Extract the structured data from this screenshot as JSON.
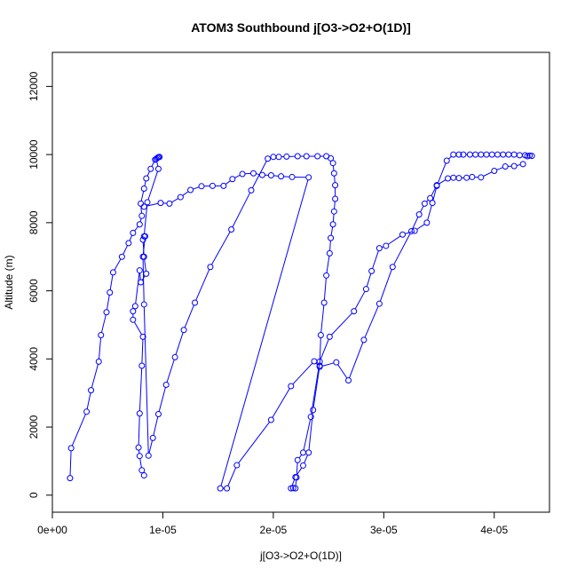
{
  "chart_data": {
    "type": "scatter",
    "title": "ATOM3 Southbound j[O3->O2+O(1D)]",
    "xlabel": "j[O3->O2+O(1D)]",
    "ylabel": "Altitude (m)",
    "xlim": [
      0,
      4.5e-05
    ],
    "ylim": [
      -500,
      13000
    ],
    "x_ticks": [
      0,
      1e-05,
      2e-05,
      3e-05,
      4e-05
    ],
    "x_tick_labels": [
      "0e+00",
      "1e-05",
      "2e-05",
      "3e-05",
      "4e-05"
    ],
    "y_ticks": [
      0,
      2000,
      4000,
      6000,
      8000,
      10000,
      12000
    ],
    "y_tick_labels": [
      "0",
      "2000",
      "4000",
      "6000",
      "8000",
      "10000",
      "12000"
    ],
    "grid": false,
    "color": "#0000ff",
    "marker": "open-circle",
    "series": [
      {
        "points": [
          [
            1.6e-06,
            500
          ],
          [
            1.7e-06,
            1380
          ],
          [
            3.1e-06,
            2450
          ],
          [
            3.5e-06,
            3080
          ],
          [
            4.2e-06,
            3920
          ],
          [
            4.4e-06,
            4700
          ],
          [
            4.9e-06,
            5370
          ],
          [
            5.2e-06,
            5950
          ],
          [
            5.5e-06,
            6540
          ],
          [
            6.3e-06,
            7000
          ],
          [
            6.9e-06,
            7400
          ],
          [
            7.3e-06,
            7700
          ],
          [
            7.9e-06,
            7950
          ],
          [
            8.1e-06,
            8200
          ],
          [
            8e-06,
            8560
          ],
          [
            8.3e-06,
            9000
          ],
          [
            8.5e-06,
            9300
          ],
          [
            8.9e-06,
            9580
          ],
          [
            9.3e-06,
            9850
          ],
          [
            9.5e-06,
            9900
          ],
          [
            9.6e-06,
            9920
          ],
          [
            9.7e-06,
            9930
          ],
          [
            9.6e-06,
            9920
          ],
          [
            9.4e-06,
            9870
          ],
          [
            9.6e-06,
            9580
          ],
          [
            8.6e-06,
            8600
          ],
          [
            8.3e-06,
            7600
          ],
          [
            8.2e-06,
            7500
          ],
          [
            8.3e-06,
            7000
          ],
          [
            8.5e-06,
            6500
          ],
          [
            8e-06,
            6250
          ],
          [
            7.9e-06,
            6600
          ],
          [
            7.5e-06,
            5550
          ],
          [
            7.3e-06,
            5400
          ],
          [
            7.3e-06,
            5150
          ],
          [
            8.2e-06,
            4650
          ],
          [
            8.1e-06,
            3800
          ],
          [
            7.9e-06,
            2400
          ],
          [
            7.8e-06,
            1400
          ],
          [
            7.9e-06,
            1150
          ],
          [
            8.1e-06,
            730
          ],
          [
            8.3e-06,
            580
          ]
        ]
      },
      {
        "points": [
          [
            8.4e-06,
            7600
          ],
          [
            8.2e-06,
            7000
          ],
          [
            8.3e-06,
            5600
          ],
          [
            8.7e-06,
            1160
          ],
          [
            9.1e-06,
            1680
          ],
          [
            9.6e-06,
            2380
          ],
          [
            1.03e-05,
            3240
          ],
          [
            1.11e-05,
            4050
          ],
          [
            1.19e-05,
            4850
          ],
          [
            1.29e-05,
            5650
          ],
          [
            1.43e-05,
            6700
          ],
          [
            1.62e-05,
            7800
          ],
          [
            1.8e-05,
            8950
          ],
          [
            1.95e-05,
            9880
          ],
          [
            2e-05,
            9930
          ],
          [
            2.05e-05,
            9930
          ],
          [
            2.12e-05,
            9940
          ],
          [
            2.22e-05,
            9950
          ],
          [
            2.3e-05,
            9950
          ],
          [
            2.4e-05,
            9950
          ],
          [
            2.48e-05,
            9950
          ],
          [
            2.52e-05,
            9890
          ],
          [
            2.54e-05,
            9750
          ],
          [
            2.55e-05,
            9450
          ],
          [
            2.56e-05,
            9100
          ],
          [
            2.56e-05,
            8700
          ],
          [
            2.55e-05,
            8330
          ],
          [
            2.54e-05,
            7950
          ],
          [
            2.52e-05,
            7550
          ],
          [
            2.51e-05,
            7100
          ],
          [
            2.48e-05,
            6450
          ],
          [
            2.46e-05,
            5650
          ],
          [
            2.43e-05,
            4700
          ],
          [
            2.42e-05,
            3800
          ],
          [
            2.36e-05,
            2500
          ],
          [
            2.32e-05,
            1250
          ],
          [
            2.27e-05,
            870
          ],
          [
            2.2e-05,
            530
          ],
          [
            2.16e-05,
            200
          ],
          [
            2.18e-05,
            210
          ],
          [
            2.2e-05,
            200
          ],
          [
            2.21e-05,
            520
          ],
          [
            2.22e-05,
            1030
          ],
          [
            2.27e-05,
            1250
          ],
          [
            2.34e-05,
            2300
          ],
          [
            2.42e-05,
            3920
          ],
          [
            2.51e-05,
            4650
          ],
          [
            2.73e-05,
            5400
          ],
          [
            2.84e-05,
            6050
          ],
          [
            2.89e-05,
            6580
          ],
          [
            2.96e-05,
            7250
          ],
          [
            3.02e-05,
            7320
          ],
          [
            3.17e-05,
            7650
          ],
          [
            3.28e-05,
            7760
          ],
          [
            3.39e-05,
            8000
          ],
          [
            3.44e-05,
            8580
          ],
          [
            3.48e-05,
            9080
          ],
          [
            3.57e-05,
            9820
          ],
          [
            3.63e-05,
            10000
          ],
          [
            3.68e-05,
            10000
          ],
          [
            3.72e-05,
            10000
          ],
          [
            3.78e-05,
            10000
          ],
          [
            3.83e-05,
            10000
          ],
          [
            3.88e-05,
            10000
          ],
          [
            3.93e-05,
            10000
          ],
          [
            3.98e-05,
            10000
          ],
          [
            4.03e-05,
            10000
          ],
          [
            4.08e-05,
            10000
          ],
          [
            4.13e-05,
            10000
          ],
          [
            4.18e-05,
            10000
          ],
          [
            4.23e-05,
            9980
          ],
          [
            4.28e-05,
            9980
          ],
          [
            4.32e-05,
            9970
          ],
          [
            4.34e-05,
            9960
          ],
          [
            4.3e-05,
            9950
          ]
        ]
      },
      {
        "points": [
          [
            8.3e-06,
            8470
          ],
          [
            9.8e-06,
            8580
          ],
          [
            1.06e-05,
            8560
          ],
          [
            1.16e-05,
            8750
          ],
          [
            1.25e-05,
            8960
          ],
          [
            1.35e-05,
            9070
          ],
          [
            1.45e-05,
            9080
          ],
          [
            1.55e-05,
            9080
          ],
          [
            1.63e-05,
            9280
          ],
          [
            1.72e-05,
            9430
          ],
          [
            1.82e-05,
            9450
          ],
          [
            1.9e-05,
            9400
          ],
          [
            1.98e-05,
            9390
          ],
          [
            2.07e-05,
            9360
          ],
          [
            2.17e-05,
            9340
          ],
          [
            2.32e-05,
            9330
          ],
          [
            1.52e-05,
            200
          ],
          [
            1.58e-05,
            200
          ],
          [
            1.67e-05,
            880
          ],
          [
            1.98e-05,
            2210
          ],
          [
            2.16e-05,
            3200
          ],
          [
            2.37e-05,
            3930
          ],
          [
            2.42e-05,
            3770
          ],
          [
            2.57e-05,
            3900
          ],
          [
            2.68e-05,
            3370
          ],
          [
            2.82e-05,
            4560
          ],
          [
            2.96e-05,
            5620
          ],
          [
            3.08e-05,
            6700
          ],
          [
            3.25e-05,
            7750
          ],
          [
            3.32e-05,
            8240
          ],
          [
            3.37e-05,
            8560
          ],
          [
            3.42e-05,
            8720
          ],
          [
            3.48e-05,
            9100
          ],
          [
            3.58e-05,
            9300
          ],
          [
            3.63e-05,
            9320
          ],
          [
            3.68e-05,
            9310
          ],
          [
            3.75e-05,
            9320
          ],
          [
            3.8e-05,
            9340
          ],
          [
            3.88e-05,
            9330
          ],
          [
            4e-05,
            9520
          ],
          [
            4.1e-05,
            9650
          ],
          [
            4.18e-05,
            9660
          ],
          [
            4.26e-05,
            9720
          ]
        ]
      }
    ]
  }
}
